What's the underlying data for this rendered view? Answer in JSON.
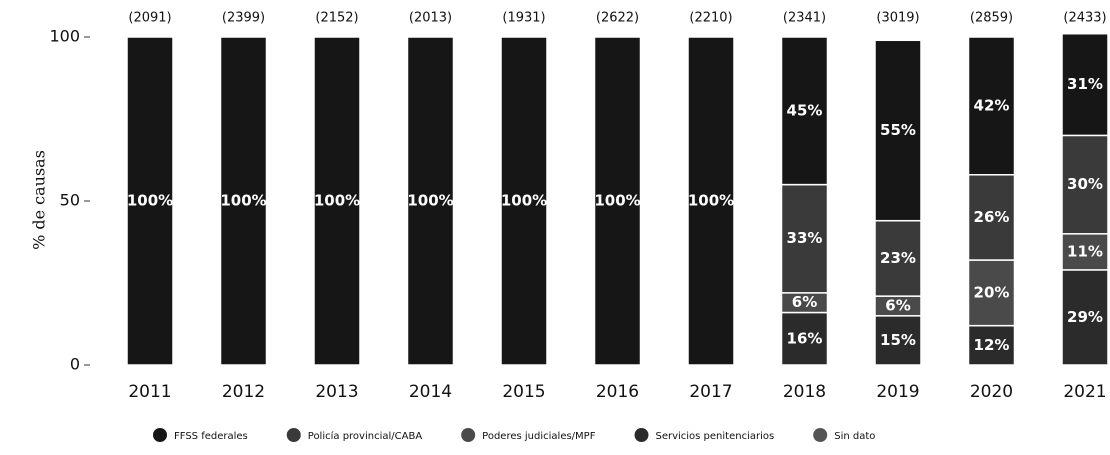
{
  "chart_data": {
    "type": "stacked_bar",
    "y_label": "% de causas",
    "categories": [
      "2011",
      "2012",
      "2013",
      "2014",
      "2015",
      "2016",
      "2017",
      "2018",
      "2019",
      "2020",
      "2021"
    ],
    "bar_totals": [
      "(2091)",
      "(2399)",
      "(2152)",
      "(2013)",
      "(1931)",
      "(2622)",
      "(2210)",
      "(2341)",
      "(3019)",
      "(2859)",
      "(2433)"
    ],
    "ylim": [
      0,
      100
    ],
    "yticks": [
      0,
      50,
      100
    ],
    "series": [
      {
        "name": "Servicios penitenciarios",
        "color": "#2b2b2b",
        "values": [
          null,
          null,
          null,
          null,
          null,
          null,
          null,
          16,
          15,
          12,
          29
        ],
        "value_labels": [
          null,
          null,
          null,
          null,
          null,
          null,
          null,
          "16%",
          "15%",
          "12%",
          "29%"
        ]
      },
      {
        "name": "Poderes judiciales/MPF",
        "color": "#4a4a4a",
        "values": [
          null,
          null,
          null,
          null,
          null,
          null,
          null,
          6,
          6,
          20,
          11
        ],
        "value_labels": [
          null,
          null,
          null,
          null,
          null,
          null,
          null,
          "6%",
          "6%",
          "20%",
          "11%"
        ]
      },
      {
        "name": "Policía provincial/CABA",
        "color": "#3a3a3a",
        "values": [
          null,
          null,
          null,
          null,
          null,
          null,
          null,
          33,
          23,
          26,
          30
        ],
        "value_labels": [
          null,
          null,
          null,
          null,
          null,
          null,
          null,
          "33%",
          "23%",
          "26%",
          "30%"
        ]
      },
      {
        "name": "FFSS federales",
        "color": "#161616",
        "values": [
          100,
          100,
          100,
          100,
          100,
          100,
          100,
          45,
          55,
          42,
          31
        ],
        "value_labels": [
          "100%",
          "100%",
          "100%",
          "100%",
          "100%",
          "100%",
          "100%",
          "45%",
          "55%",
          "42%",
          "31%"
        ]
      },
      {
        "name": "Sin dato",
        "color": "#555555",
        "values": [
          null,
          null,
          null,
          null,
          null,
          null,
          null,
          null,
          null,
          null,
          null
        ],
        "value_labels": [
          null,
          null,
          null,
          null,
          null,
          null,
          null,
          null,
          null,
          null,
          null
        ]
      }
    ],
    "legend_order": [
      3,
      2,
      1,
      0,
      4
    ]
  }
}
